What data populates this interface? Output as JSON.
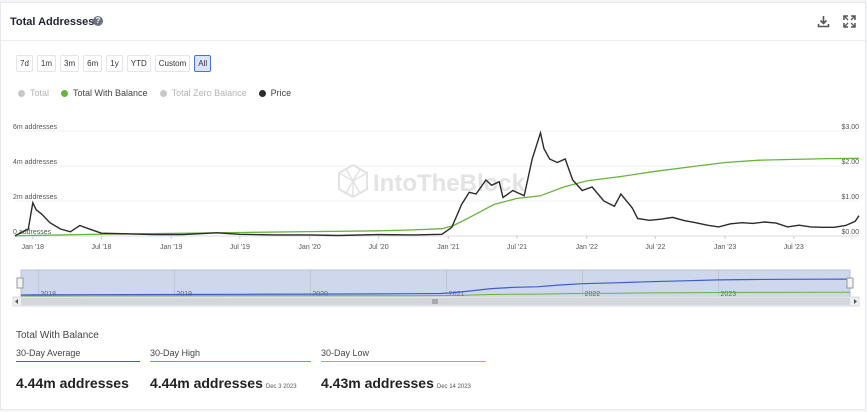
{
  "header": {
    "title": "Total Addresses",
    "help_icon": "?"
  },
  "ranges": [
    {
      "label": "7d",
      "active": false
    },
    {
      "label": "1m",
      "active": false
    },
    {
      "label": "3m",
      "active": false
    },
    {
      "label": "6m",
      "active": false
    },
    {
      "label": "1y",
      "active": false
    },
    {
      "label": "YTD",
      "active": false
    },
    {
      "label": "Custom",
      "active": false
    },
    {
      "label": "All",
      "active": true
    }
  ],
  "legend": [
    {
      "label": "Total",
      "color": "#c8c8c8",
      "muted": true
    },
    {
      "label": "Total With Balance",
      "color": "#68b33c",
      "muted": false
    },
    {
      "label": "Total Zero Balance",
      "color": "#c8c8c8",
      "muted": true
    },
    {
      "label": "Price",
      "color": "#2b2b2b",
      "muted": false
    }
  ],
  "watermark": "IntoTheBlock",
  "chart_data": {
    "type": "line",
    "y_left_ticks": [
      "0 addresses",
      "2m addresses",
      "4m addresses",
      "6m addresses"
    ],
    "y_left_range": [
      0,
      6000000
    ],
    "y_right_ticks": [
      "$0.00",
      "$1.00",
      "$2.00",
      "$3.00"
    ],
    "y_right_range": [
      0,
      3
    ],
    "x_ticks": [
      "Jan '18",
      "Jul '18",
      "Jan '19",
      "Jul '19",
      "Jan '20",
      "Jul '20",
      "Jan '21",
      "Jul '21",
      "Jan '22",
      "Jul '22",
      "Jan '23",
      "Jul '23"
    ],
    "x_range": [
      "2017-11-15",
      "2023-12-20"
    ],
    "series": [
      {
        "name": "Total With Balance",
        "color": "#68b33c",
        "axis": "left",
        "points": [
          [
            "2017-11-15",
            0
          ],
          [
            "2017-12-15",
            30000
          ],
          [
            "2018-06-01",
            90000
          ],
          [
            "2019-01-01",
            150000
          ],
          [
            "2019-07-01",
            200000
          ],
          [
            "2020-01-01",
            250000
          ],
          [
            "2020-07-01",
            300000
          ],
          [
            "2020-10-01",
            350000
          ],
          [
            "2020-12-15",
            420000
          ],
          [
            "2021-01-15",
            600000
          ],
          [
            "2021-03-01",
            1100000
          ],
          [
            "2021-05-01",
            1800000
          ],
          [
            "2021-07-01",
            2150000
          ],
          [
            "2021-09-01",
            2300000
          ],
          [
            "2021-11-01",
            2800000
          ],
          [
            "2022-01-01",
            3150000
          ],
          [
            "2022-04-01",
            3400000
          ],
          [
            "2022-07-01",
            3700000
          ],
          [
            "2022-10-01",
            3950000
          ],
          [
            "2023-01-01",
            4200000
          ],
          [
            "2023-04-01",
            4330000
          ],
          [
            "2023-07-01",
            4380000
          ],
          [
            "2023-10-01",
            4420000
          ],
          [
            "2023-12-20",
            4440000
          ]
        ]
      },
      {
        "name": "Price",
        "color": "#2b2b2b",
        "axis": "right",
        "points": [
          [
            "2017-11-15",
            0.01
          ],
          [
            "2017-12-20",
            0.2
          ],
          [
            "2018-01-01",
            0.95
          ],
          [
            "2018-01-10",
            0.75
          ],
          [
            "2018-01-25",
            0.62
          ],
          [
            "2018-02-15",
            0.38
          ],
          [
            "2018-03-15",
            0.2
          ],
          [
            "2018-04-10",
            0.12
          ],
          [
            "2018-05-05",
            0.3
          ],
          [
            "2018-05-25",
            0.22
          ],
          [
            "2018-07-01",
            0.08
          ],
          [
            "2018-09-15",
            0.06
          ],
          [
            "2018-11-15",
            0.04
          ],
          [
            "2019-02-01",
            0.04
          ],
          [
            "2019-05-01",
            0.09
          ],
          [
            "2019-07-01",
            0.05
          ],
          [
            "2019-10-01",
            0.03
          ],
          [
            "2020-01-01",
            0.03
          ],
          [
            "2020-03-15",
            0.015
          ],
          [
            "2020-07-01",
            0.04
          ],
          [
            "2020-10-01",
            0.03
          ],
          [
            "2020-12-15",
            0.05
          ],
          [
            "2021-01-10",
            0.25
          ],
          [
            "2021-02-05",
            0.9
          ],
          [
            "2021-02-25",
            1.25
          ],
          [
            "2021-03-15",
            1.2
          ],
          [
            "2021-04-10",
            1.6
          ],
          [
            "2021-04-25",
            1.45
          ],
          [
            "2021-05-15",
            1.55
          ],
          [
            "2021-05-25",
            1.1
          ],
          [
            "2021-06-20",
            1.3
          ],
          [
            "2021-07-20",
            1.15
          ],
          [
            "2021-08-10",
            2.2
          ],
          [
            "2021-09-01",
            2.95
          ],
          [
            "2021-09-10",
            2.5
          ],
          [
            "2021-09-25",
            2.2
          ],
          [
            "2021-10-15",
            2.1
          ],
          [
            "2021-11-05",
            2.2
          ],
          [
            "2021-11-25",
            1.6
          ],
          [
            "2021-12-20",
            1.3
          ],
          [
            "2022-01-15",
            1.4
          ],
          [
            "2022-02-15",
            1.0
          ],
          [
            "2022-03-15",
            0.85
          ],
          [
            "2022-04-01",
            1.2
          ],
          [
            "2022-05-01",
            0.8
          ],
          [
            "2022-05-15",
            0.5
          ],
          [
            "2022-06-15",
            0.45
          ],
          [
            "2022-07-15",
            0.48
          ],
          [
            "2022-08-15",
            0.53
          ],
          [
            "2022-09-15",
            0.44
          ],
          [
            "2022-10-15",
            0.38
          ],
          [
            "2022-11-15",
            0.31
          ],
          [
            "2022-12-15",
            0.26
          ],
          [
            "2023-01-15",
            0.35
          ],
          [
            "2023-02-15",
            0.38
          ],
          [
            "2023-03-15",
            0.36
          ],
          [
            "2023-04-15",
            0.4
          ],
          [
            "2023-05-15",
            0.37
          ],
          [
            "2023-06-15",
            0.26
          ],
          [
            "2023-07-15",
            0.31
          ],
          [
            "2023-08-15",
            0.26
          ],
          [
            "2023-09-15",
            0.25
          ],
          [
            "2023-10-15",
            0.25
          ],
          [
            "2023-11-15",
            0.3
          ],
          [
            "2023-12-10",
            0.42
          ],
          [
            "2023-12-20",
            0.58
          ]
        ]
      }
    ],
    "navigator": {
      "x_ticks": [
        "2018",
        "2019",
        "2020",
        "2021",
        "2022",
        "2023"
      ],
      "tick_dates": [
        "2018-01-01",
        "2019-01-01",
        "2020-01-01",
        "2021-01-01",
        "2022-01-01",
        "2023-01-01"
      ]
    }
  },
  "stats": {
    "title": "Total With Balance",
    "items": [
      {
        "label": "30-Day Average",
        "value": "4.44m addresses",
        "date": "",
        "color": "#3b5fc5"
      },
      {
        "label": "30-Day High",
        "value": "4.44m addresses",
        "date": "Dec 3 2023",
        "color": "#68b33c"
      },
      {
        "label": "30-Day Low",
        "value": "4.43m addresses",
        "date": "Dec 14 2023",
        "color": "#e0a030"
      }
    ]
  }
}
